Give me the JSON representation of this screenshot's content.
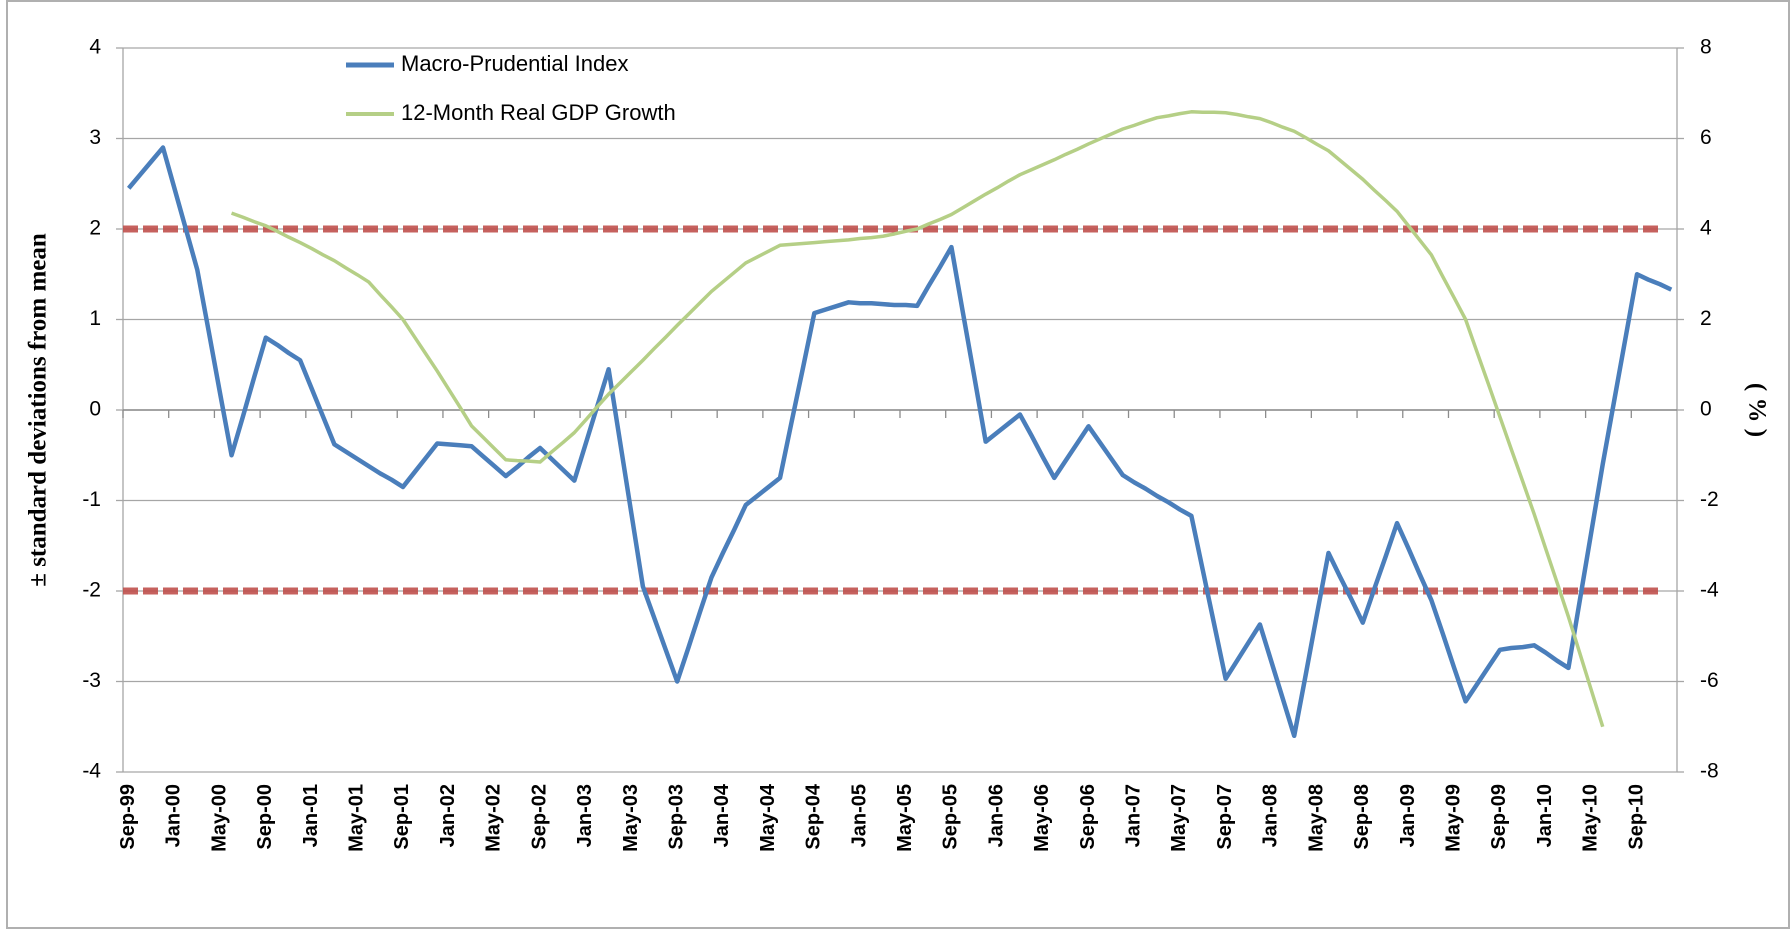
{
  "chart_data": {
    "type": "line",
    "ylabel": "± standard deviations from mean",
    "y2label": "( % )",
    "categories": [
      "Sep-99",
      null,
      null,
      null,
      "Jan-00",
      null,
      null,
      null,
      "May-00",
      null,
      null,
      null,
      "Sep-00",
      null,
      null,
      null,
      "Jan-01",
      null,
      null,
      null,
      "May-01",
      null,
      null,
      null,
      "Sep-01",
      null,
      null,
      null,
      "Jan-02",
      null,
      null,
      null,
      "May-02",
      null,
      null,
      null,
      "Sep-02",
      null,
      null,
      null,
      "Jan-03",
      null,
      null,
      null,
      "May-03",
      null,
      null,
      null,
      "Sep-03",
      null,
      null,
      null,
      "Jan-04",
      null,
      null,
      null,
      "May-04",
      null,
      null,
      null,
      "Sep-04",
      null,
      null,
      null,
      "Jan-05",
      null,
      null,
      null,
      "May-05",
      null,
      null,
      null,
      "Sep-05",
      null,
      null,
      null,
      "Jan-06",
      null,
      null,
      null,
      "May-06",
      null,
      null,
      null,
      "Sep-06",
      null,
      null,
      null,
      "Jan-07",
      null,
      null,
      null,
      "May-07",
      null,
      null,
      null,
      "Sep-07",
      null,
      null,
      null,
      "Jan-08",
      null,
      null,
      null,
      "May-08",
      null,
      null,
      null,
      "Sep-08",
      null,
      null,
      null,
      "Jan-09",
      null,
      null,
      null,
      "May-09",
      null,
      null,
      null,
      "Sep-09",
      null,
      null,
      null,
      "Jan-10",
      null,
      null,
      null,
      "May-10",
      null,
      null,
      null,
      "Sep-10",
      null,
      null,
      null
    ],
    "series": [
      {
        "name": "Macro-Prudential Index",
        "color": "#4a7ebb",
        "axis": "y",
        "values": [
          2.45,
          2.6,
          2.75,
          2.9,
          2.45,
          2.0,
          1.55,
          0.87,
          0.18,
          -0.5,
          -0.07,
          0.37,
          0.8,
          0.72,
          0.63,
          0.55,
          0.24,
          -0.07,
          -0.38,
          -0.46,
          -0.54,
          -0.62,
          -0.7,
          -0.77,
          -0.85,
          -0.69,
          -0.53,
          -0.37,
          -0.38,
          -0.39,
          -0.4,
          -0.51,
          -0.62,
          -0.73,
          -0.63,
          -0.52,
          -0.42,
          -0.54,
          -0.66,
          -0.78,
          -0.37,
          0.04,
          0.45,
          -0.35,
          -1.15,
          -1.95,
          -2.3,
          -2.65,
          -3.0,
          -2.62,
          -2.23,
          -1.85,
          -1.58,
          -1.32,
          -1.05,
          -0.95,
          -0.85,
          -0.75,
          -0.14,
          0.46,
          1.07,
          1.11,
          1.15,
          1.19,
          1.18,
          1.18,
          1.17,
          1.16,
          1.16,
          1.15,
          1.37,
          1.58,
          1.8,
          1.08,
          0.37,
          -0.35,
          -0.25,
          -0.15,
          -0.05,
          -0.28,
          -0.52,
          -0.75,
          -0.56,
          -0.37,
          -0.18,
          -0.36,
          -0.54,
          -0.72,
          -0.8,
          -0.87,
          -0.95,
          -1.02,
          -1.1,
          -1.17,
          -1.77,
          -2.37,
          -2.97,
          -2.77,
          -2.57,
          -2.37,
          -2.78,
          -3.19,
          -3.6,
          -2.93,
          -2.25,
          -1.58,
          -1.84,
          -2.09,
          -2.35,
          -1.98,
          -1.62,
          -1.25,
          -1.53,
          -1.82,
          -2.1,
          -2.47,
          -2.85,
          -3.22,
          -3.03,
          -2.84,
          -2.65,
          -2.63,
          -2.62,
          -2.6,
          -2.68,
          -2.77,
          -2.85,
          -2.1,
          -1.35,
          -0.6,
          0.1,
          0.8,
          1.5,
          1.44,
          1.39,
          1.33
        ]
      },
      {
        "name": "12-Month Real GDP Growth",
        "color": "#b5cf86",
        "axis": "y2",
        "values": [
          null,
          null,
          null,
          null,
          null,
          null,
          null,
          null,
          null,
          4.35,
          4.26,
          4.16,
          4.07,
          3.95,
          3.82,
          3.7,
          3.57,
          3.43,
          3.3,
          3.14,
          2.99,
          2.83,
          2.55,
          2.28,
          2.0,
          1.62,
          1.24,
          0.86,
          0.46,
          0.06,
          -0.35,
          -0.6,
          -0.85,
          -1.1,
          -1.12,
          -1.13,
          -1.15,
          -0.93,
          -0.72,
          -0.5,
          -0.22,
          0.07,
          0.35,
          0.6,
          0.85,
          1.1,
          1.36,
          1.61,
          1.87,
          2.12,
          2.37,
          2.62,
          2.83,
          3.04,
          3.25,
          3.38,
          3.51,
          3.64,
          3.66,
          3.68,
          3.7,
          3.72,
          3.74,
          3.76,
          3.79,
          3.81,
          3.84,
          3.89,
          3.95,
          4.0,
          4.11,
          4.21,
          4.32,
          4.47,
          4.62,
          4.77,
          4.91,
          5.06,
          5.2,
          5.31,
          5.42,
          5.53,
          5.65,
          5.76,
          5.88,
          5.99,
          6.1,
          6.21,
          6.29,
          6.38,
          6.46,
          6.5,
          6.55,
          6.59,
          6.58,
          6.58,
          6.57,
          6.53,
          6.48,
          6.44,
          6.35,
          6.25,
          6.16,
          6.02,
          5.87,
          5.73,
          5.52,
          5.31,
          5.1,
          4.86,
          4.63,
          4.39,
          4.07,
          3.75,
          3.43,
          2.95,
          2.48,
          2.0,
          1.28,
          0.57,
          -0.15,
          -0.87,
          -1.58,
          -2.3,
          -3.06,
          -3.81,
          -4.57,
          -5.38,
          -6.19,
          -7.0,
          null,
          null,
          null,
          null,
          null,
          null
        ]
      }
    ],
    "reference_lines": {
      "values": [
        2,
        -2
      ],
      "color": "#c0504d"
    },
    "ylim": [
      -4,
      4
    ],
    "yticks": [
      -4,
      -3,
      -2,
      -1,
      0,
      1,
      2,
      3,
      4
    ],
    "y2lim": [
      -8,
      8
    ],
    "y2ticks": [
      -8,
      -6,
      -4,
      -2,
      0,
      2,
      4,
      6,
      8
    ],
    "grid": true,
    "legend": "top-left"
  }
}
